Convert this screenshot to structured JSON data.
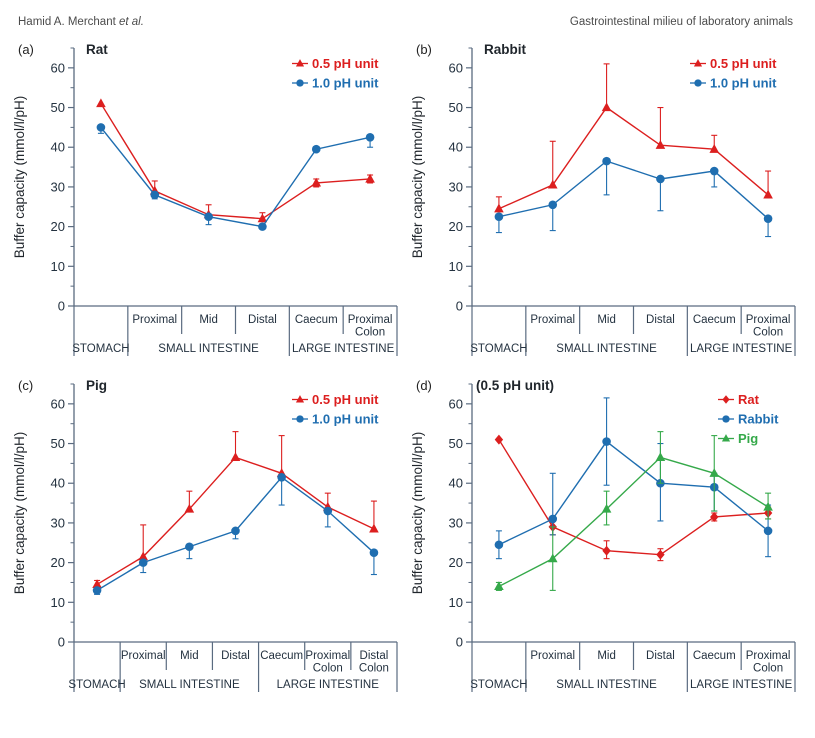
{
  "header": {
    "author_name": "Hamid A. Merchant ",
    "author_etal": "et al.",
    "right_title": "Gastrointestinal milieu of laboratory animals"
  },
  "colors": {
    "red": "#dc1f1f",
    "blue": "#1f6eb0",
    "green": "#35a94a",
    "axis": "#5a6b80",
    "label": "#243240",
    "title": "#20262c"
  },
  "axis": {
    "ylabel": "Buffer capacity (mmol/l/pH)",
    "ymin": 0,
    "ymax": 65,
    "yticks": [
      0,
      10,
      20,
      30,
      40,
      50,
      60
    ],
    "minor_step": 5
  },
  "chart_data": [
    {
      "type": "line",
      "letter": "(a)",
      "title": "Rat",
      "categories": [
        "",
        "Proximal",
        "Mid",
        "Distal",
        "Caecum",
        "Proximal\nColon"
      ],
      "groups": [
        {
          "label": "STOMACH",
          "span": 1
        },
        {
          "label": "SMALL INTESTINE",
          "span": 3
        },
        {
          "label": "LARGE INTESTINE",
          "span": 2
        }
      ],
      "series": [
        {
          "name": "0.5 pH unit",
          "color": "red",
          "marker": "triangle",
          "values": [
            51,
            29,
            23,
            22,
            31,
            32
          ],
          "err_up": [
            0.5,
            2.5,
            2.5,
            1.5,
            1,
            1
          ],
          "err_down": [
            0.5,
            0,
            0,
            0,
            1,
            1
          ]
        },
        {
          "name": "1.0 pH unit",
          "color": "blue",
          "marker": "circle",
          "values": [
            45,
            28,
            22.5,
            20,
            39.5,
            42.5
          ],
          "err_up": [
            0,
            0,
            0,
            0,
            0,
            0
          ],
          "err_down": [
            1.5,
            1,
            2,
            0.5,
            0,
            2.5
          ]
        }
      ]
    },
    {
      "type": "line",
      "letter": "(b)",
      "title": "Rabbit",
      "categories": [
        "",
        "Proximal",
        "Mid",
        "Distal",
        "Caecum",
        "Proximal\nColon"
      ],
      "groups": [
        {
          "label": "STOMACH",
          "span": 1
        },
        {
          "label": "SMALL INTESTINE",
          "span": 3
        },
        {
          "label": "LARGE INTESTINE",
          "span": 2
        }
      ],
      "series": [
        {
          "name": "0.5 pH unit",
          "color": "red",
          "marker": "triangle",
          "values": [
            24.5,
            30.5,
            50,
            40.5,
            39.5,
            28
          ],
          "err_up": [
            3,
            11,
            11,
            9.5,
            3.5,
            6
          ],
          "err_down": [
            0,
            0,
            0,
            0,
            0,
            0
          ]
        },
        {
          "name": "1.0 pH unit",
          "color": "blue",
          "marker": "circle",
          "values": [
            22.5,
            25.5,
            36.5,
            32,
            34,
            22
          ],
          "err_up": [
            0,
            0,
            0,
            0,
            0,
            0
          ],
          "err_down": [
            4,
            6.5,
            8.5,
            8,
            4,
            4.5
          ]
        }
      ]
    },
    {
      "type": "line",
      "letter": "(c)",
      "title": "Pig",
      "categories": [
        "",
        "Proximal",
        "Mid",
        "Distal",
        "Caecum",
        "Proximal\nColon",
        "Distal\nColon"
      ],
      "groups": [
        {
          "label": "STOMACH",
          "span": 1
        },
        {
          "label": "SMALL INTESTINE",
          "span": 3
        },
        {
          "label": "LARGE INTESTINE",
          "span": 3
        }
      ],
      "series": [
        {
          "name": "0.5 pH unit",
          "color": "red",
          "marker": "triangle",
          "values": [
            14.5,
            21.5,
            33.5,
            46.5,
            42.5,
            34,
            28.5
          ],
          "err_up": [
            1,
            8,
            4.5,
            6.5,
            9.5,
            3.5,
            7
          ],
          "err_down": [
            0,
            0,
            0,
            0,
            0,
            0,
            0
          ]
        },
        {
          "name": "1.0 pH unit",
          "color": "blue",
          "marker": "circle",
          "values": [
            13,
            20,
            24,
            28,
            41.5,
            33,
            22.5
          ],
          "err_up": [
            0,
            0,
            0,
            0,
            0,
            0,
            0
          ],
          "err_down": [
            1,
            2.5,
            3,
            2,
            7,
            4,
            5.5
          ]
        }
      ]
    },
    {
      "type": "line",
      "letter": "(d)",
      "title": "(0.5 pH unit)",
      "categories": [
        "",
        "Proximal",
        "Mid",
        "Distal",
        "Caecum",
        "Proximal\nColon"
      ],
      "groups": [
        {
          "label": "STOMACH",
          "span": 1
        },
        {
          "label": "SMALL INTESTINE",
          "span": 3
        },
        {
          "label": "LARGE INTESTINE",
          "span": 2
        }
      ],
      "series": [
        {
          "name": "Rat",
          "color": "red",
          "marker": "diamond",
          "values": [
            51,
            29,
            23,
            22,
            31.5,
            32.5
          ],
          "err_up": [
            0.5,
            2,
            2.5,
            1.5,
            1,
            1.5
          ],
          "err_down": [
            0.5,
            2,
            2,
            1.5,
            1,
            1.5
          ]
        },
        {
          "name": "Rabbit",
          "color": "blue",
          "marker": "circle",
          "values": [
            24.5,
            31,
            50.5,
            40,
            39,
            28
          ],
          "err_up": [
            3.5,
            11.5,
            11,
            10,
            3.5,
            6.5
          ],
          "err_down": [
            3.5,
            4,
            11,
            9.5,
            6,
            6.5
          ]
        },
        {
          "name": "Pig",
          "color": "green",
          "marker": "triangle",
          "values": [
            14,
            21,
            33.5,
            46.5,
            42.5,
            34
          ],
          "err_up": [
            1,
            8,
            4.5,
            6.5,
            9.5,
            3.5
          ],
          "err_down": [
            1,
            8,
            4,
            6.5,
            9.5,
            3
          ]
        }
      ]
    }
  ]
}
